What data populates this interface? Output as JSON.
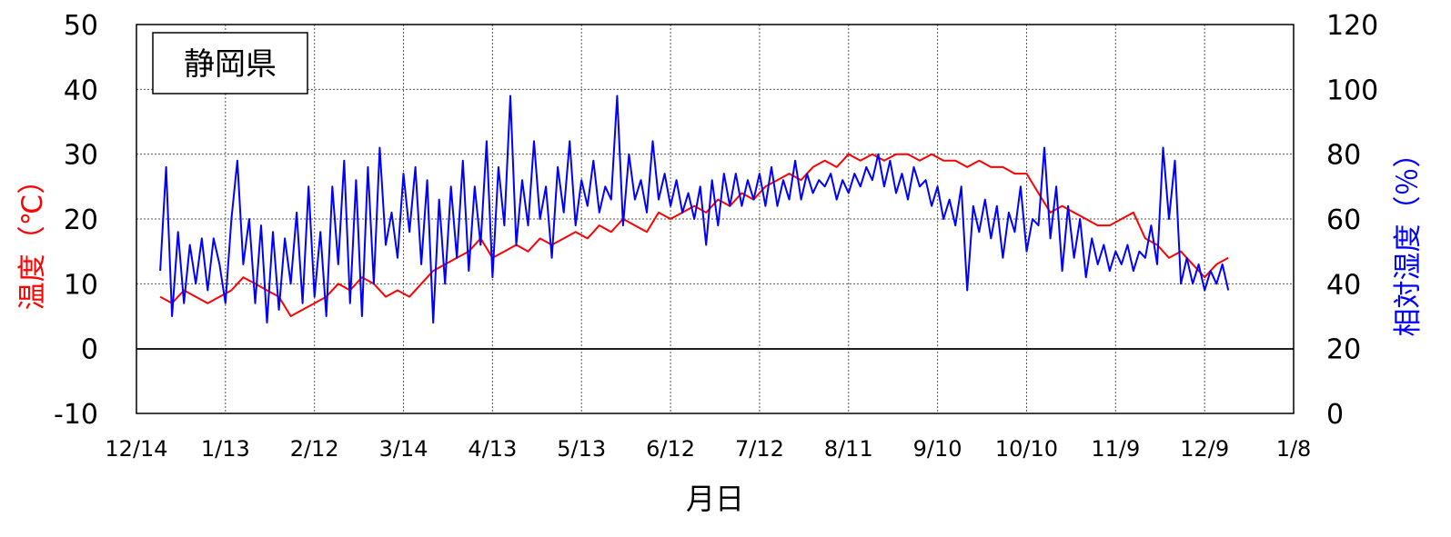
{
  "chart_data": {
    "type": "line",
    "title": "",
    "annotation": "静岡県",
    "xlabel": "月日",
    "ylabel_left": "温度（℃）",
    "ylabel_right": "相対湿度（％）",
    "x_ticks": [
      "12/14",
      "1/13",
      "2/12",
      "3/14",
      "4/13",
      "5/13",
      "6/12",
      "7/12",
      "8/11",
      "9/10",
      "10/10",
      "11/9",
      "12/9",
      "1/8"
    ],
    "xlim_days": [
      0,
      390
    ],
    "y_left_ticks": [
      "-10",
      "0",
      "10",
      "20",
      "30",
      "40",
      "50"
    ],
    "y_right_ticks": [
      "0",
      "20",
      "40",
      "60",
      "80",
      "100",
      "120"
    ],
    "y_left_lim": [
      -10,
      50
    ],
    "y_right_lim": [
      0,
      120
    ],
    "grid": true,
    "colors": {
      "temperature": "#ff0000",
      "humidity": "#0000ff",
      "left_axis_label": "#ff0000",
      "right_axis_label": "#0000ff"
    },
    "series": [
      {
        "axis": "left",
        "x_days": [
          8,
          12,
          16,
          20,
          24,
          28,
          32,
          36,
          40,
          44,
          48,
          52,
          56,
          60,
          64,
          68,
          72,
          76,
          80,
          84,
          88,
          92,
          96,
          100,
          104,
          108,
          112,
          116,
          120,
          124,
          128,
          132,
          136,
          140,
          144,
          148,
          152,
          156,
          160,
          164,
          168,
          172,
          176,
          180,
          184,
          188,
          192,
          196,
          200,
          204,
          208,
          212,
          216,
          220,
          224,
          228,
          232,
          236,
          240,
          244,
          248,
          252,
          256,
          260,
          264,
          268,
          272,
          276,
          280,
          284,
          288,
          292,
          296,
          300,
          304,
          308,
          312,
          316,
          320,
          324,
          328,
          332,
          336,
          340,
          344,
          348,
          352,
          356,
          360,
          364,
          368
        ],
        "values": [
          8,
          7,
          9,
          8,
          7,
          8,
          9,
          11,
          10,
          9,
          8,
          5,
          6,
          7,
          8,
          10,
          9,
          11,
          10,
          8,
          9,
          8,
          10,
          12,
          13,
          14,
          15,
          17,
          14,
          15,
          16,
          15,
          17,
          16,
          17,
          18,
          17,
          19,
          18,
          20,
          19,
          18,
          21,
          20,
          21,
          22,
          21,
          23,
          22,
          24,
          23,
          25,
          26,
          27,
          26,
          28,
          29,
          28,
          30,
          29,
          30,
          29,
          30,
          30,
          29,
          30,
          29,
          29,
          28,
          29,
          28,
          28,
          27,
          27,
          24,
          21,
          22,
          21,
          20,
          19,
          19,
          20,
          21,
          17,
          16,
          14,
          15,
          13,
          11,
          13,
          14
        ]
      },
      {
        "axis": "right",
        "x_days": [
          8,
          10,
          12,
          14,
          16,
          18,
          20,
          22,
          24,
          26,
          28,
          30,
          32,
          34,
          36,
          38,
          40,
          42,
          44,
          46,
          48,
          50,
          52,
          54,
          56,
          58,
          60,
          62,
          64,
          66,
          68,
          70,
          72,
          74,
          76,
          78,
          80,
          82,
          84,
          86,
          88,
          90,
          92,
          94,
          96,
          98,
          100,
          102,
          104,
          106,
          108,
          110,
          112,
          114,
          116,
          118,
          120,
          122,
          124,
          126,
          128,
          130,
          132,
          134,
          136,
          138,
          140,
          142,
          144,
          146,
          148,
          150,
          152,
          154,
          156,
          158,
          160,
          162,
          164,
          166,
          168,
          170,
          172,
          174,
          176,
          178,
          180,
          182,
          184,
          186,
          188,
          190,
          192,
          194,
          196,
          198,
          200,
          202,
          204,
          206,
          208,
          210,
          212,
          214,
          216,
          218,
          220,
          222,
          224,
          226,
          228,
          230,
          232,
          234,
          236,
          238,
          240,
          242,
          244,
          246,
          248,
          250,
          252,
          254,
          256,
          258,
          260,
          262,
          264,
          266,
          268,
          270,
          272,
          274,
          276,
          278,
          280,
          282,
          284,
          286,
          288,
          290,
          292,
          294,
          296,
          298,
          300,
          302,
          304,
          306,
          308,
          310,
          312,
          314,
          316,
          318,
          320,
          322,
          324,
          326,
          328,
          330,
          332,
          334,
          336,
          338,
          340,
          342,
          344,
          346,
          348,
          350,
          352,
          354,
          356,
          358,
          360,
          362,
          364,
          366,
          368
        ],
        "values": [
          44,
          76,
          30,
          56,
          34,
          52,
          40,
          54,
          38,
          54,
          46,
          34,
          60,
          78,
          46,
          60,
          34,
          58,
          28,
          56,
          32,
          54,
          40,
          62,
          34,
          70,
          36,
          56,
          30,
          70,
          46,
          78,
          34,
          72,
          30,
          76,
          40,
          82,
          52,
          62,
          48,
          74,
          56,
          76,
          46,
          72,
          28,
          66,
          40,
          70,
          48,
          78,
          44,
          70,
          52,
          84,
          42,
          76,
          58,
          98,
          52,
          72,
          58,
          84,
          60,
          70,
          48,
          76,
          62,
          84,
          58,
          72,
          64,
          78,
          62,
          70,
          66,
          98,
          58,
          80,
          66,
          72,
          62,
          84,
          66,
          74,
          64,
          72,
          62,
          68,
          60,
          70,
          52,
          72,
          58,
          74,
          64,
          74,
          64,
          72,
          66,
          74,
          64,
          76,
          64,
          72,
          66,
          78,
          66,
          74,
          68,
          72,
          70,
          74,
          66,
          72,
          68,
          74,
          70,
          76,
          72,
          80,
          70,
          78,
          68,
          74,
          66,
          76,
          70,
          72,
          64,
          70,
          60,
          66,
          58,
          70,
          38,
          64,
          56,
          66,
          54,
          64,
          48,
          62,
          56,
          70,
          50,
          60,
          58,
          82,
          54,
          70,
          44,
          64,
          48,
          60,
          42,
          54,
          46,
          52,
          44,
          50,
          46,
          52,
          44,
          50,
          48,
          58,
          46,
          82,
          60,
          78,
          40,
          48,
          40,
          46,
          38,
          44,
          40,
          46,
          38
        ]
      }
    ]
  }
}
